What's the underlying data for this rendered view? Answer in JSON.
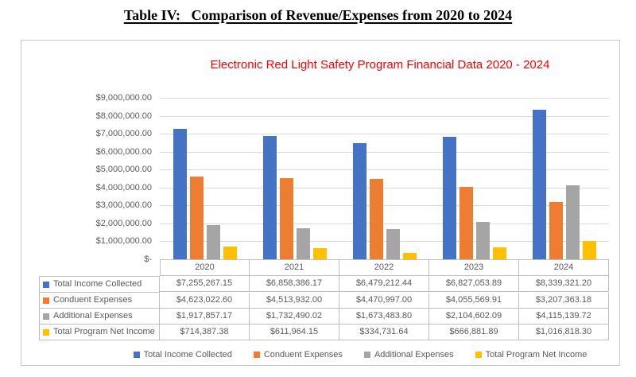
{
  "page": {
    "title": "Table IV:   Comparison of Revenue/Expenses from 2020 to 2024"
  },
  "chart_data": {
    "type": "bar",
    "title": "Electronic Red Light Safety Program Financial Data 2020 - 2024",
    "title_color": "#FF0000",
    "xlabel": "",
    "ylabel": "",
    "categories": [
      "2020",
      "2021",
      "2022",
      "2023",
      "2024"
    ],
    "series": [
      {
        "name": "Total Income Collected",
        "color": "#4472C4",
        "values": [
          7255267.15,
          6858386.17,
          6479212.44,
          6827053.89,
          8339321.2
        ],
        "formatted": [
          "$7,255,267.15",
          "$6,858,386.17",
          "$6,479,212.44",
          "$6,827,053.89",
          "$8,339,321.20"
        ]
      },
      {
        "name": "Conduent Expenses",
        "color": "#ED7D31",
        "values": [
          4623022.6,
          4513932.0,
          4470997.0,
          4055569.91,
          3207363.18
        ],
        "formatted": [
          "$4,623,022.60",
          "$4,513,932.00",
          "$4,470,997.00",
          "$4,055,569.91",
          "$3,207,363.18"
        ]
      },
      {
        "name": "Additional Expenses",
        "color": "#A5A5A5",
        "values": [
          1917857.17,
          1732490.02,
          1673483.8,
          2104602.09,
          4115139.72
        ],
        "formatted": [
          "$1,917,857.17",
          "$1,732,490.02",
          "$1,673,483.80",
          "$2,104,602.09",
          "$4,115,139.72"
        ]
      },
      {
        "name": "Total Program Net Income",
        "color": "#FFC000",
        "values": [
          714387.38,
          611964.15,
          334731.64,
          666881.89,
          1016818.3
        ],
        "formatted": [
          "$714,387.38",
          "$611,964.15",
          "$334,731.64",
          "$666,881.89",
          "$1,016,818.30"
        ]
      }
    ],
    "ylim": [
      0,
      9000000
    ],
    "ytick_step": 1000000,
    "ytick_labels": [
      "$-",
      "$1,000,000.00",
      "$2,000,000.00",
      "$3,000,000.00",
      "$4,000,000.00",
      "$5,000,000.00",
      "$6,000,000.00",
      "$7,000,000.00",
      "$8,000,000.00",
      "$9,000,000.00"
    ],
    "grid": true,
    "legend_position": "bottom",
    "legend": [
      "Total Income Collected",
      "Conduent Expenses",
      "Additional Expenses",
      "Total Program Net Income"
    ]
  }
}
